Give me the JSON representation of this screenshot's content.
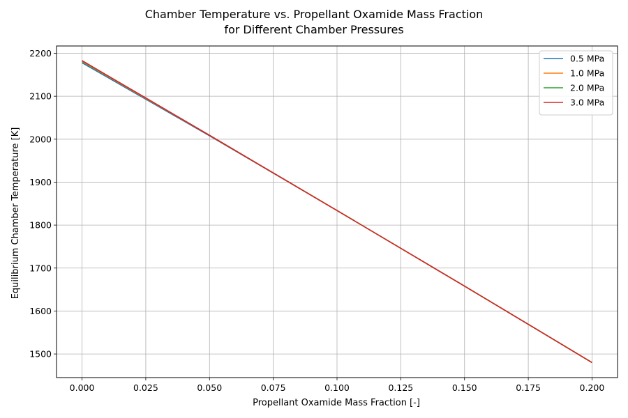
{
  "chart_data": {
    "type": "line",
    "title_line1": "Chamber Temperature vs. Propellant Oxamide Mass Fraction",
    "title_line2": "for Different Chamber Pressures",
    "xlabel": "Propellant Oxamide Mass Fraction [-]",
    "ylabel": "Equilibrium Chamber Temperature [K]",
    "xlim": [
      -0.01,
      0.21
    ],
    "ylim": [
      1445,
      2217
    ],
    "xticks": [
      0.0,
      0.025,
      0.05,
      0.075,
      0.1,
      0.125,
      0.15,
      0.175,
      0.2
    ],
    "xtick_labels": [
      "0.000",
      "0.025",
      "0.050",
      "0.075",
      "0.100",
      "0.125",
      "0.150",
      "0.175",
      "0.200"
    ],
    "yticks": [
      1500,
      1600,
      1700,
      1800,
      1900,
      2000,
      2100,
      2200
    ],
    "ytick_labels": [
      "1500",
      "1600",
      "1700",
      "1800",
      "1900",
      "2000",
      "2100",
      "2200"
    ],
    "grid": true,
    "legend_position": "top-right",
    "series": [
      {
        "name": "0.5 MPa",
        "color": "#1f77b4",
        "x": [
          0.0,
          0.025,
          0.05,
          0.1,
          0.15,
          0.2
        ],
        "y": [
          2178,
          2093,
          2008,
          1834,
          1658,
          1480
        ]
      },
      {
        "name": "1.0 MPa",
        "color": "#ff7f0e",
        "x": [
          0.0,
          0.025,
          0.05,
          0.1,
          0.15,
          0.2
        ],
        "y": [
          2181,
          2095,
          2009,
          1834,
          1658,
          1480
        ]
      },
      {
        "name": "2.0 MPa",
        "color": "#2ca02c",
        "x": [
          0.0,
          0.025,
          0.05,
          0.1,
          0.15,
          0.2
        ],
        "y": [
          2182,
          2096,
          2009,
          1834,
          1658,
          1480
        ]
      },
      {
        "name": "3.0 MPa",
        "color": "#d62728",
        "x": [
          0.0,
          0.025,
          0.05,
          0.1,
          0.15,
          0.2
        ],
        "y": [
          2183,
          2096,
          2009,
          1834,
          1658,
          1480
        ]
      }
    ]
  }
}
